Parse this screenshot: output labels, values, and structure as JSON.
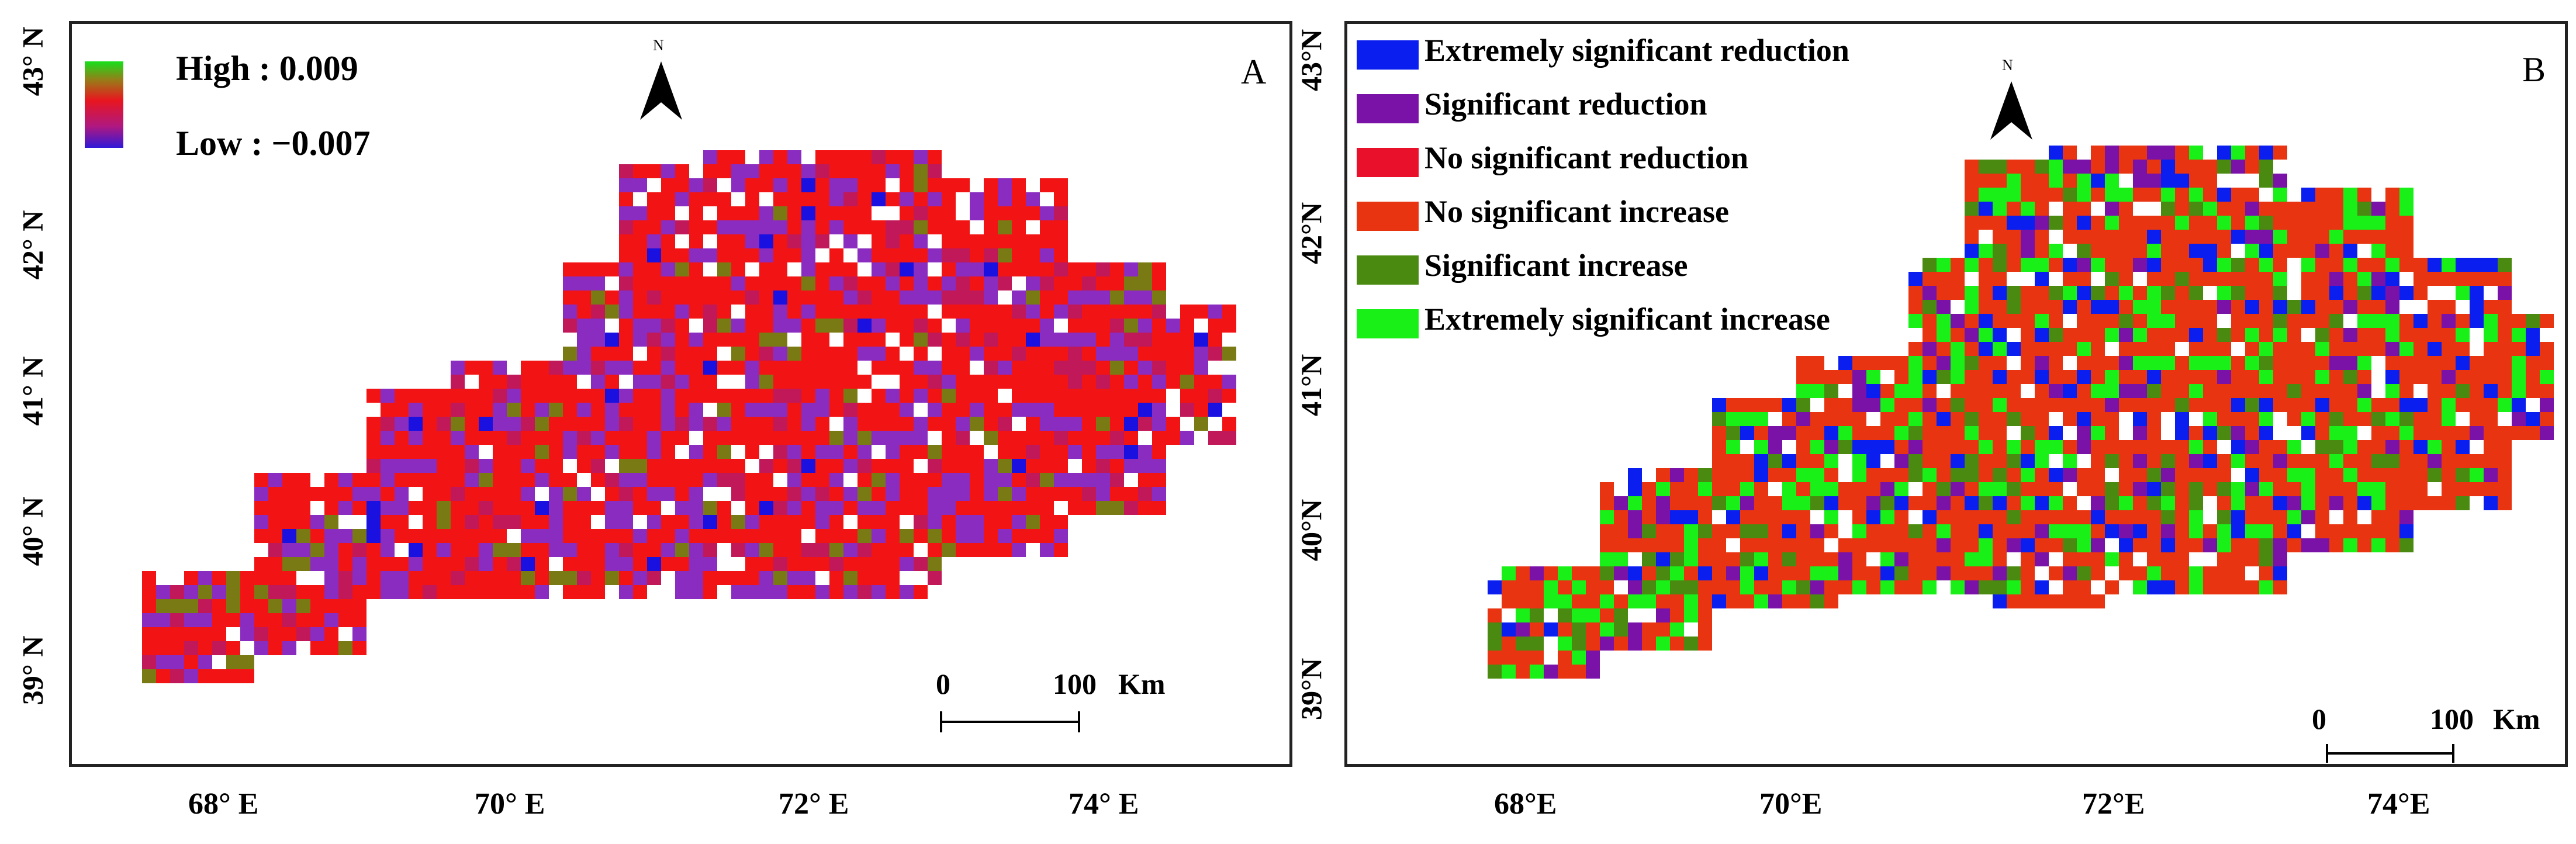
{
  "panels": [
    {
      "letter": "A",
      "legend": {
        "type": "gradient",
        "high_label": "High : 0.009",
        "low_label": "Low : −0.007",
        "high_value": 0.009,
        "low_value": -0.007
      },
      "north": "N",
      "scale_bar": {
        "start": "0",
        "end": "100",
        "unit": "Km"
      },
      "y_ticks": [
        "43° N",
        "42° N",
        "41° N",
        "40° N",
        "39° N"
      ],
      "x_ticks": [
        "68° E",
        "70° E",
        "72° E",
        "74° E"
      ]
    },
    {
      "letter": "B",
      "legend": {
        "type": "classes",
        "items": [
          {
            "label": "Extremely significant reduction",
            "color": "#0a1ef0"
          },
          {
            "label": "Significant reduction",
            "color": "#7a12a8"
          },
          {
            "label": "No significant reduction",
            "color": "#e8102a"
          },
          {
            "label": "No significant increase",
            "color": "#e83410"
          },
          {
            "label": "Significant increase",
            "color": "#4a8a10"
          },
          {
            "label": "Extremely significant increase",
            "color": "#18f018"
          }
        ]
      },
      "north": "N",
      "scale_bar": {
        "start": "0",
        "end": "100",
        "unit": "Km"
      },
      "y_ticks": [
        "43°N",
        "42°N",
        "41°N",
        "40°N",
        "39°N"
      ],
      "x_ticks": [
        "68°E",
        "70°E",
        "72°E",
        "74°E"
      ]
    }
  ],
  "colors": {
    "gradient_top": "#16e01a",
    "gradient_mid": "#e8161e",
    "gradient_bottom": "#3018d8",
    "map_red": "#f21414",
    "map_purple": "#8a2cc0",
    "map_olive": "#7a7a14",
    "map_blue": "#1a10e0",
    "b_main": "#e83410",
    "b_green": "#18f018",
    "b_olive": "#4a8a10",
    "b_blue": "#0a1ef0",
    "b_purple": "#7a12a8"
  },
  "icons": {
    "north_arrow": "north-arrow-icon"
  }
}
